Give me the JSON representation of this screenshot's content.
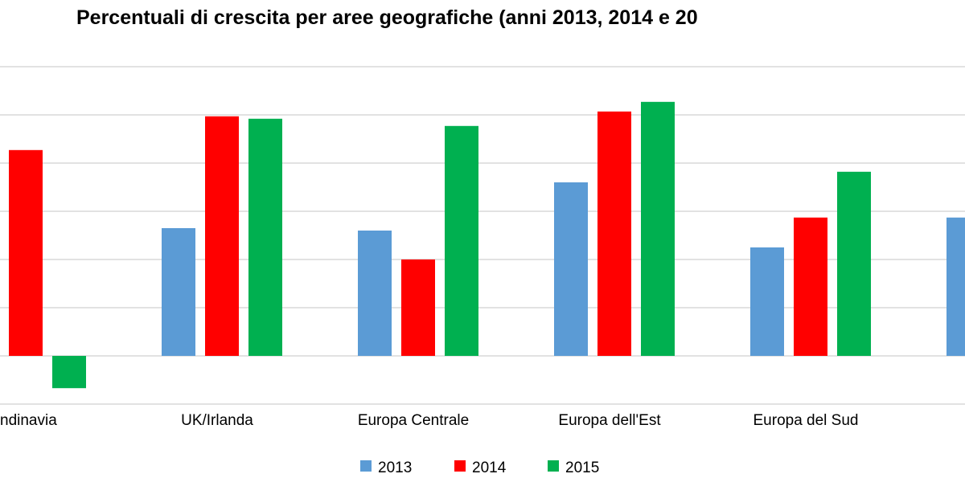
{
  "chart_data": {
    "type": "bar",
    "title": "Percentuali di crescita per aree geografiche (anni 2013, 2014 e 20",
    "xlabel": "",
    "ylabel": "",
    "ylim": [
      -1,
      6
    ],
    "y_unit_note_visible": false,
    "grid": true,
    "legend_placement": "bottom",
    "categories": [
      "ndinavia",
      "UK/Irlanda",
      "Europa Centrale",
      "Europa dell'Est",
      "Europa del Sud",
      ""
    ],
    "series": [
      {
        "name": "2013",
        "color": "#5b9bd5",
        "values": [
          null,
          2.65,
          2.6,
          3.6,
          2.25,
          2.87
        ]
      },
      {
        "name": "2014",
        "color": "#ff0000",
        "values": [
          4.27,
          4.97,
          2.0,
          5.07,
          2.87,
          null
        ]
      },
      {
        "name": "2015",
        "color": "#00b050",
        "values": [
          -0.67,
          4.92,
          4.77,
          5.27,
          3.82,
          null
        ]
      }
    ]
  }
}
